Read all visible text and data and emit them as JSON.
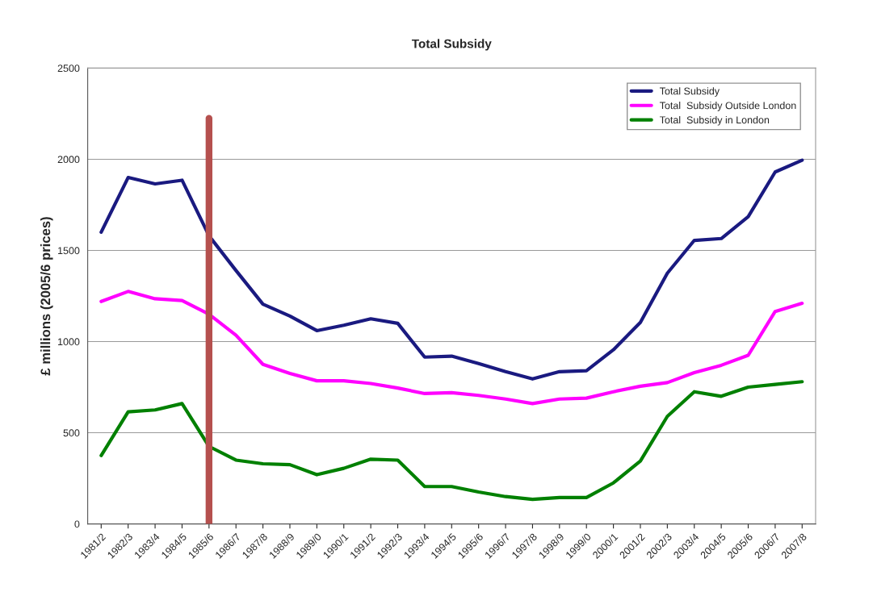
{
  "chart_data": {
    "type": "line",
    "title": "Total Subsidy",
    "ylabel": "£ millions (2005/6 prices)",
    "categories": [
      "1981/2",
      "1982/3",
      "1983/4",
      "1984/5",
      "1985/6",
      "1986/7",
      "1987/8",
      "1988/9",
      "1989/0",
      "1990/1",
      "1991/2",
      "1992/3",
      "1993/4",
      "1994/5",
      "1995/6",
      "1996/7",
      "1997/8",
      "1998/9",
      "1999/0",
      "2000/1",
      "2001/2",
      "2002/3",
      "2003/4",
      "2004/5",
      "2005/6",
      "2006/7",
      "2007/8"
    ],
    "series": [
      {
        "name": "Total Subsidy",
        "color": "#1a1a80",
        "values": [
          1600,
          1900,
          1865,
          1885,
          1580,
          1390,
          1205,
          1140,
          1060,
          1090,
          1125,
          1100,
          915,
          920,
          880,
          835,
          795,
          835,
          840,
          955,
          1105,
          1375,
          1555,
          1565,
          1685,
          1930,
          1995
        ]
      },
      {
        "name": "Total  Subsidy Outside London",
        "color": "#ff00ff",
        "values": [
          1220,
          1275,
          1235,
          1225,
          1150,
          1035,
          875,
          825,
          785,
          785,
          770,
          745,
          715,
          720,
          705,
          685,
          660,
          685,
          690,
          725,
          755,
          775,
          830,
          870,
          925,
          1165,
          1210
        ]
      },
      {
        "name": "Total  Subsidy in London",
        "color": "#008000",
        "values": [
          375,
          615,
          625,
          660,
          425,
          350,
          330,
          325,
          270,
          305,
          355,
          350,
          205,
          205,
          175,
          150,
          135,
          145,
          145,
          225,
          345,
          590,
          725,
          700,
          750,
          765,
          780
        ]
      }
    ],
    "ylim": [
      0,
      2500
    ],
    "yticks": [
      0,
      500,
      1000,
      1500,
      2000,
      2500
    ],
    "grid": "y",
    "legend": "top right",
    "marker": "none",
    "line_style": "solid",
    "ref_lines": [
      {
        "axis": "x",
        "value": "1985/6",
        "color": "#b5504e"
      }
    ]
  }
}
